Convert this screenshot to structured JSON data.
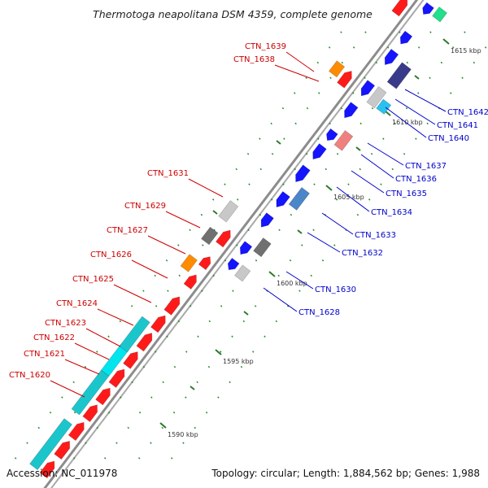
{
  "title": "Thermotoga neapolitana DSM 4359, complete genome",
  "footer": {
    "accession": "Accession: NC_011978",
    "topology": "Topology: circular; Length: 1,884,562 bp; Genes: 1,988"
  },
  "colors": {
    "backbone": "#909090",
    "red_label": "#cc0000",
    "blue_label": "#0000cc",
    "tick": "#2a8a2a"
  },
  "ticks": [
    "1590 kbp",
    "1595 kbp",
    "1600 kbp",
    "1605 kbp",
    "1610 kbp",
    "1615 kbp"
  ],
  "left_labels": [
    "CTN_1639",
    "CTN_1638",
    "CTN_1631",
    "CTN_1629",
    "CTN_1627",
    "CTN_1626",
    "CTN_1625",
    "CTN_1624",
    "CTN_1623",
    "CTN_1622",
    "CTN_1621",
    "CTN_1620"
  ],
  "right_labels": [
    "CTN_1642",
    "CTN_1641",
    "CTN_1640",
    "CTN_1637",
    "CTN_1636",
    "CTN_1635",
    "CTN_1634",
    "CTN_1633",
    "CTN_1632",
    "CTN_1630",
    "CTN_1628"
  ]
}
